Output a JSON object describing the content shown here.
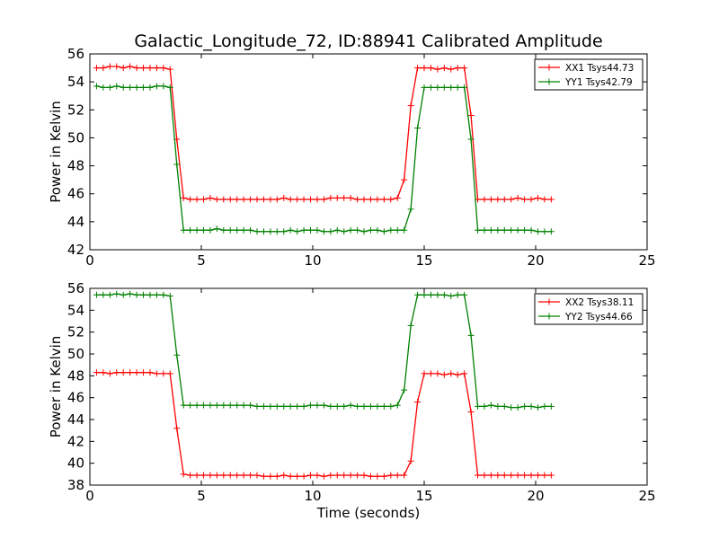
{
  "figure": {
    "title": "Galactic_Longitude_72, ID:88941 Calibrated Amplitude"
  },
  "chart_data": [
    {
      "type": "line",
      "ylabel": "Power in Kelvin",
      "xlabel": "",
      "xlim": [
        0,
        25
      ],
      "ylim": [
        42,
        56
      ],
      "x_ticks": [
        "0",
        "5",
        "10",
        "15",
        "20",
        "25"
      ],
      "y_ticks": [
        "42",
        "44",
        "46",
        "48",
        "50",
        "52",
        "54",
        "56"
      ],
      "x_tick_values": [
        0,
        5,
        10,
        15,
        20,
        25
      ],
      "y_tick_values": [
        42,
        44,
        46,
        48,
        50,
        52,
        54,
        56
      ],
      "legend_position": "top-right",
      "series": [
        {
          "name": "XX1 Tsys44.73",
          "color": "#ff0000",
          "x": [
            0.3,
            0.6,
            0.9,
            1.2,
            1.5,
            1.8,
            2.1,
            2.4,
            2.7,
            3.0,
            3.3,
            3.6,
            3.9,
            4.2,
            4.5,
            4.8,
            5.1,
            5.4,
            5.7,
            6.0,
            6.3,
            6.6,
            6.9,
            7.2,
            7.5,
            7.8,
            8.1,
            8.4,
            8.7,
            9.0,
            9.3,
            9.6,
            9.9,
            10.2,
            10.5,
            10.8,
            11.1,
            11.4,
            11.7,
            12.0,
            12.3,
            12.6,
            12.9,
            13.2,
            13.5,
            13.8,
            14.1,
            14.4,
            14.7,
            15.0,
            15.3,
            15.6,
            15.9,
            16.2,
            16.5,
            16.8,
            17.1,
            17.4,
            17.7,
            18.0,
            18.3,
            18.6,
            18.9,
            19.2,
            19.5,
            19.8,
            20.1,
            20.4,
            20.7
          ],
          "y": [
            55.0,
            55.0,
            55.1,
            55.1,
            55.0,
            55.1,
            55.0,
            55.0,
            55.0,
            55.0,
            55.0,
            54.9,
            49.9,
            45.7,
            45.6,
            45.6,
            45.6,
            45.7,
            45.6,
            45.6,
            45.6,
            45.6,
            45.6,
            45.6,
            45.6,
            45.6,
            45.6,
            45.6,
            45.7,
            45.6,
            45.6,
            45.6,
            45.6,
            45.6,
            45.6,
            45.7,
            45.7,
            45.7,
            45.7,
            45.6,
            45.6,
            45.6,
            45.6,
            45.6,
            45.6,
            45.7,
            47.0,
            52.3,
            55.0,
            55.0,
            55.0,
            54.9,
            55.0,
            54.9,
            55.0,
            55.0,
            51.6,
            45.6,
            45.6,
            45.6,
            45.6,
            45.6,
            45.6,
            45.7,
            45.6,
            45.6,
            45.7,
            45.6,
            45.6
          ]
        },
        {
          "name": "YY1 Tsys42.79",
          "color": "#008000",
          "x": [
            0.3,
            0.6,
            0.9,
            1.2,
            1.5,
            1.8,
            2.1,
            2.4,
            2.7,
            3.0,
            3.3,
            3.6,
            3.9,
            4.2,
            4.5,
            4.8,
            5.1,
            5.4,
            5.7,
            6.0,
            6.3,
            6.6,
            6.9,
            7.2,
            7.5,
            7.8,
            8.1,
            8.4,
            8.7,
            9.0,
            9.3,
            9.6,
            9.9,
            10.2,
            10.5,
            10.8,
            11.1,
            11.4,
            11.7,
            12.0,
            12.3,
            12.6,
            12.9,
            13.2,
            13.5,
            13.8,
            14.1,
            14.4,
            14.7,
            15.0,
            15.3,
            15.6,
            15.9,
            16.2,
            16.5,
            16.8,
            17.1,
            17.4,
            17.7,
            18.0,
            18.3,
            18.6,
            18.9,
            19.2,
            19.5,
            19.8,
            20.1,
            20.4,
            20.7
          ],
          "y": [
            53.7,
            53.6,
            53.6,
            53.7,
            53.6,
            53.6,
            53.6,
            53.6,
            53.6,
            53.7,
            53.7,
            53.6,
            48.1,
            43.4,
            43.4,
            43.4,
            43.4,
            43.4,
            43.5,
            43.4,
            43.4,
            43.4,
            43.4,
            43.4,
            43.3,
            43.3,
            43.3,
            43.3,
            43.3,
            43.4,
            43.3,
            43.4,
            43.4,
            43.4,
            43.3,
            43.3,
            43.4,
            43.3,
            43.4,
            43.4,
            43.3,
            43.4,
            43.4,
            43.3,
            43.4,
            43.4,
            43.4,
            44.9,
            50.7,
            53.6,
            53.6,
            53.6,
            53.6,
            53.6,
            53.6,
            53.6,
            49.9,
            43.4,
            43.4,
            43.4,
            43.4,
            43.4,
            43.4,
            43.4,
            43.4,
            43.4,
            43.3,
            43.3,
            43.3
          ]
        }
      ]
    },
    {
      "type": "line",
      "ylabel": "Power in Kelvin",
      "xlabel": "Time (seconds)",
      "xlim": [
        0,
        25
      ],
      "ylim": [
        38,
        56
      ],
      "x_ticks": [
        "0",
        "5",
        "10",
        "15",
        "20",
        "25"
      ],
      "y_ticks": [
        "38",
        "40",
        "42",
        "44",
        "46",
        "48",
        "50",
        "52",
        "54",
        "56"
      ],
      "x_tick_values": [
        0,
        5,
        10,
        15,
        20,
        25
      ],
      "y_tick_values": [
        38,
        40,
        42,
        44,
        46,
        48,
        50,
        52,
        54,
        56
      ],
      "legend_position": "top-right",
      "series": [
        {
          "name": "XX2 Tsys38.11",
          "color": "#ff0000",
          "x": [
            0.3,
            0.6,
            0.9,
            1.2,
            1.5,
            1.8,
            2.1,
            2.4,
            2.7,
            3.0,
            3.3,
            3.6,
            3.9,
            4.2,
            4.5,
            4.8,
            5.1,
            5.4,
            5.7,
            6.0,
            6.3,
            6.6,
            6.9,
            7.2,
            7.5,
            7.8,
            8.1,
            8.4,
            8.7,
            9.0,
            9.3,
            9.6,
            9.9,
            10.2,
            10.5,
            10.8,
            11.1,
            11.4,
            11.7,
            12.0,
            12.3,
            12.6,
            12.9,
            13.2,
            13.5,
            13.8,
            14.1,
            14.4,
            14.7,
            15.0,
            15.3,
            15.6,
            15.9,
            16.2,
            16.5,
            16.8,
            17.1,
            17.4,
            17.7,
            18.0,
            18.3,
            18.6,
            18.9,
            19.2,
            19.5,
            19.8,
            20.1,
            20.4,
            20.7
          ],
          "y": [
            48.3,
            48.3,
            48.2,
            48.3,
            48.3,
            48.3,
            48.3,
            48.3,
            48.3,
            48.2,
            48.2,
            48.2,
            43.2,
            39.0,
            38.9,
            38.9,
            38.9,
            38.9,
            38.9,
            38.9,
            38.9,
            38.9,
            38.9,
            38.9,
            38.9,
            38.8,
            38.8,
            38.8,
            38.9,
            38.8,
            38.8,
            38.8,
            38.9,
            38.9,
            38.8,
            38.9,
            38.9,
            38.9,
            38.9,
            38.9,
            38.9,
            38.8,
            38.8,
            38.8,
            38.9,
            38.9,
            38.9,
            40.2,
            45.6,
            48.2,
            48.2,
            48.2,
            48.1,
            48.2,
            48.1,
            48.2,
            44.7,
            38.9,
            38.9,
            38.9,
            38.9,
            38.9,
            38.9,
            38.9,
            38.9,
            38.9,
            38.9,
            38.9,
            38.9
          ]
        },
        {
          "name": "YY2 Tsys44.66",
          "color": "#008000",
          "x": [
            0.3,
            0.6,
            0.9,
            1.2,
            1.5,
            1.8,
            2.1,
            2.4,
            2.7,
            3.0,
            3.3,
            3.6,
            3.9,
            4.2,
            4.5,
            4.8,
            5.1,
            5.4,
            5.7,
            6.0,
            6.3,
            6.6,
            6.9,
            7.2,
            7.5,
            7.8,
            8.1,
            8.4,
            8.7,
            9.0,
            9.3,
            9.6,
            9.9,
            10.2,
            10.5,
            10.8,
            11.1,
            11.4,
            11.7,
            12.0,
            12.3,
            12.6,
            12.9,
            13.2,
            13.5,
            13.8,
            14.1,
            14.4,
            14.7,
            15.0,
            15.3,
            15.6,
            15.9,
            16.2,
            16.5,
            16.8,
            17.1,
            17.4,
            17.7,
            18.0,
            18.3,
            18.6,
            18.9,
            19.2,
            19.5,
            19.8,
            20.1,
            20.4,
            20.7
          ],
          "y": [
            55.4,
            55.4,
            55.4,
            55.5,
            55.4,
            55.5,
            55.4,
            55.4,
            55.4,
            55.4,
            55.4,
            55.3,
            49.9,
            45.3,
            45.3,
            45.3,
            45.3,
            45.3,
            45.3,
            45.3,
            45.3,
            45.3,
            45.3,
            45.3,
            45.2,
            45.2,
            45.2,
            45.2,
            45.2,
            45.2,
            45.2,
            45.2,
            45.3,
            45.3,
            45.3,
            45.2,
            45.2,
            45.2,
            45.3,
            45.2,
            45.2,
            45.2,
            45.2,
            45.2,
            45.2,
            45.3,
            46.7,
            52.6,
            55.4,
            55.4,
            55.4,
            55.4,
            55.4,
            55.3,
            55.4,
            55.4,
            51.7,
            45.2,
            45.2,
            45.3,
            45.2,
            45.2,
            45.1,
            45.1,
            45.2,
            45.2,
            45.1,
            45.2,
            45.2
          ]
        }
      ]
    }
  ]
}
